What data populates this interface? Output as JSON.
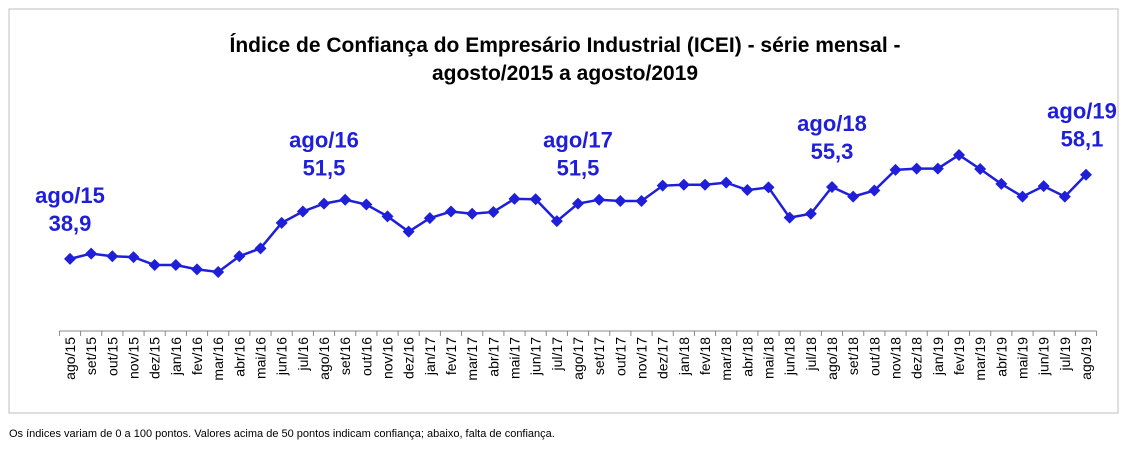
{
  "chart_data": {
    "type": "line",
    "title": "Índice de Confiança do Empresário Industrial (ICEI) - série mensal -",
    "subtitle": "agosto/2015 a agosto/2019",
    "note": "Os índices variam de 0 a 100 pontos. Valores acima de 50 pontos indicam confiança; abaixo, falta de confiança.",
    "categories": [
      "ago/15",
      "set/15",
      "out/15",
      "nov/15",
      "dez/15",
      "jan/16",
      "fev/16",
      "mar/16",
      "abr/16",
      "mai/16",
      "jun/16",
      "jul/16",
      "ago/16",
      "set/16",
      "out/16",
      "nov/16",
      "dez/16",
      "jan/17",
      "fev/17",
      "mar/17",
      "abr/17",
      "mai/17",
      "jun/17",
      "jul/17",
      "ago/17",
      "set/17",
      "out/17",
      "nov/17",
      "dez/17",
      "jan/18",
      "fev/18",
      "mar/18",
      "abr/18",
      "mai/18",
      "jun/18",
      "jul/18",
      "ago/18",
      "set/18",
      "out/18",
      "nov/18",
      "dez/18",
      "jan/19",
      "fev/19",
      "mar/19",
      "abr/19",
      "mai/19",
      "jun/19",
      "jul/19",
      "ago/19"
    ],
    "series": [
      {
        "name": "ICEI",
        "color": "#1f1fd9",
        "values": [
          38.9,
          40.1,
          39.5,
          39.3,
          37.5,
          37.5,
          36.5,
          35.9,
          39.5,
          41.3,
          47.1,
          49.7,
          51.5,
          52.4,
          51.3,
          48.6,
          45.1,
          48.2,
          49.7,
          49.2,
          49.6,
          52.6,
          52.5,
          47.5,
          51.5,
          52.4,
          52.1,
          52.1,
          55.6,
          55.8,
          55.8,
          56.3,
          54.6,
          55.2,
          48.3,
          49.2,
          55.3,
          53.1,
          54.5,
          59.2,
          59.5,
          59.5,
          62.6,
          59.4,
          56.0,
          53.1,
          55.5,
          53.1,
          58.1
        ],
        "value_labels": [
          "38,9",
          null,
          null,
          null,
          null,
          null,
          null,
          null,
          null,
          null,
          null,
          null,
          "51,5",
          null,
          null,
          null,
          null,
          null,
          null,
          null,
          null,
          null,
          null,
          null,
          "51,5",
          null,
          null,
          null,
          null,
          null,
          null,
          null,
          null,
          null,
          null,
          null,
          "55,3",
          null,
          null,
          null,
          null,
          null,
          null,
          null,
          null,
          null,
          null,
          null,
          "58,1"
        ]
      }
    ]
  }
}
